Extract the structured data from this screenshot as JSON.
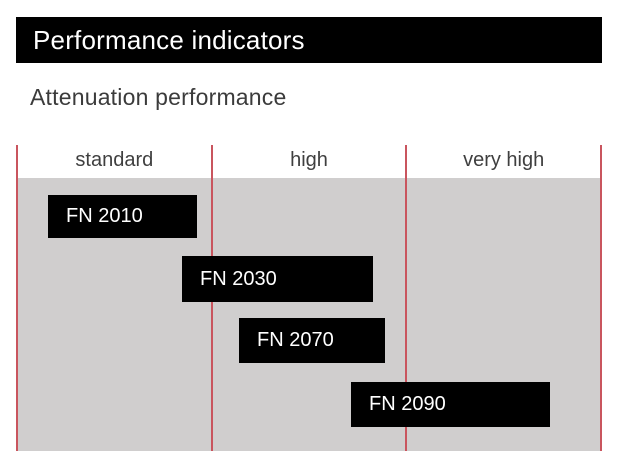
{
  "header": {
    "title": "Performance indicators",
    "subtitle": "Attenuation performance"
  },
  "colors": {
    "title_bar_bg": "#000000",
    "title_text": "#ffffff",
    "subtitle_text": "#3b3b3b",
    "column_header_text": "#3f3f3f",
    "plot_background": "#d0cece",
    "separator_red": "#c9555e",
    "bar_fill": "#000000",
    "bar_text": "#ffffff",
    "page_background": "#ffffff"
  },
  "chart": {
    "columns": [
      {
        "label": "standard"
      },
      {
        "label": "high"
      },
      {
        "label": "very high"
      }
    ],
    "gridlines": [
      {
        "style": "left:16px;top:145px;height:306px"
      },
      {
        "style": "left:211px;top:145px;height:306px"
      },
      {
        "style": "left:405px;top:145px;height:306px"
      },
      {
        "style": "left:600px;top:145px;height:306px"
      }
    ],
    "bars": [
      {
        "label": "FN 2010",
        "style": "left:48px;top:195px;width:149px;height:43px"
      },
      {
        "label": "FN 2030",
        "style": "left:182px;top:256px;width:191px;height:46px"
      },
      {
        "label": "FN 2070",
        "style": "left:239px;top:318px;width:146px;height:45px"
      },
      {
        "label": "FN 2090",
        "style": "left:351px;top:382px;width:199px;height:45px"
      }
    ]
  },
  "chart_data": {
    "type": "bar",
    "subtype": "horizontal-range-gantt",
    "title": "Attenuation performance",
    "xlabel": "",
    "ylabel": "",
    "x_axis": {
      "categories": [
        "standard",
        "high",
        "very high"
      ],
      "range": [
        0,
        3
      ],
      "category_band_width": 1
    },
    "grid": "red vertical separators at category boundaries (0,1,2,3)",
    "legend": false,
    "series": [
      {
        "name": "FN 2010",
        "range": [
          0.16,
          0.92
        ],
        "spans": [
          "standard"
        ]
      },
      {
        "name": "FN 2030",
        "range": [
          0.85,
          1.83
        ],
        "spans": [
          "standard",
          "high"
        ]
      },
      {
        "name": "FN 2070",
        "range": [
          1.14,
          1.89
        ],
        "spans": [
          "high"
        ]
      },
      {
        "name": "FN 2090",
        "range": [
          1.72,
          2.74
        ],
        "spans": [
          "high",
          "very high"
        ]
      }
    ]
  }
}
